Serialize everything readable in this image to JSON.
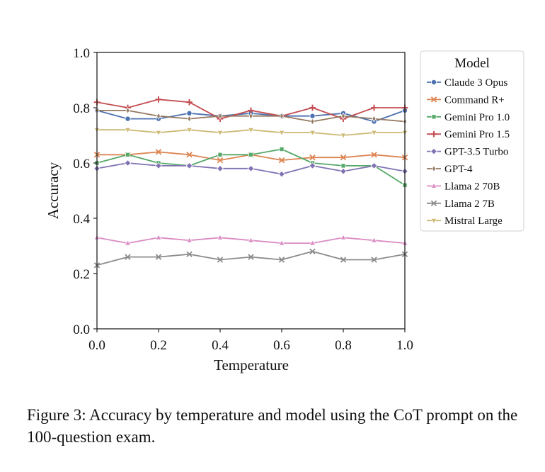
{
  "caption": "Figure 3: Accuracy by temperature and model using the CoT prompt on the 100-question exam.",
  "chart_data": {
    "type": "line",
    "title": "",
    "xlabel": "Temperature",
    "ylabel": "Accuracy",
    "xlim": [
      0.0,
      1.0
    ],
    "ylim": [
      0.0,
      1.0
    ],
    "xticks": [
      "0.0",
      "0.2",
      "0.4",
      "0.6",
      "0.8",
      "1.0"
    ],
    "yticks": [
      "0.0",
      "0.2",
      "0.4",
      "0.6",
      "0.8",
      "1.0"
    ],
    "grid": false,
    "legend": {
      "title": "Model",
      "placement": "outside-right"
    },
    "x": [
      0.0,
      0.1,
      0.2,
      0.3,
      0.4,
      0.5,
      0.6,
      0.7,
      0.8,
      0.9,
      1.0
    ],
    "series": [
      {
        "name": "Claude 3 Opus",
        "color": "#4c72b0",
        "marker": "circle",
        "values": [
          0.79,
          0.76,
          0.76,
          0.78,
          0.77,
          0.78,
          0.77,
          0.77,
          0.78,
          0.75,
          0.79
        ]
      },
      {
        "name": "Command R+",
        "color": "#dd8452",
        "marker": "x",
        "values": [
          0.63,
          0.63,
          0.64,
          0.63,
          0.61,
          0.63,
          0.61,
          0.62,
          0.62,
          0.63,
          0.62
        ]
      },
      {
        "name": "Gemini Pro 1.0",
        "color": "#55a868",
        "marker": "square",
        "values": [
          0.6,
          0.63,
          0.6,
          0.59,
          0.63,
          0.63,
          0.65,
          0.6,
          0.59,
          0.59,
          0.52
        ]
      },
      {
        "name": "Gemini Pro 1.5",
        "color": "#c44e52",
        "marker": "plus",
        "values": [
          0.82,
          0.8,
          0.83,
          0.82,
          0.76,
          0.79,
          0.77,
          0.8,
          0.76,
          0.8,
          0.8
        ]
      },
      {
        "name": "GPT-3.5 Turbo",
        "color": "#8172b3",
        "marker": "diamond",
        "values": [
          0.58,
          0.6,
          0.59,
          0.59,
          0.58,
          0.58,
          0.56,
          0.59,
          0.57,
          0.59,
          0.57
        ]
      },
      {
        "name": "GPT-4",
        "color": "#937860",
        "marker": "thin-diamond",
        "values": [
          0.79,
          0.79,
          0.77,
          0.76,
          0.77,
          0.77,
          0.77,
          0.75,
          0.77,
          0.76,
          0.75
        ]
      },
      {
        "name": "Llama 2 70B",
        "color": "#da8bc3",
        "marker": "triangle-up",
        "values": [
          0.33,
          0.31,
          0.33,
          0.32,
          0.33,
          0.32,
          0.31,
          0.31,
          0.33,
          0.32,
          0.31
        ]
      },
      {
        "name": "Llama 2 7B",
        "color": "#8c8c8c",
        "marker": "x",
        "values": [
          0.23,
          0.26,
          0.26,
          0.27,
          0.25,
          0.26,
          0.25,
          0.28,
          0.25,
          0.25,
          0.27
        ]
      },
      {
        "name": "Mistral Large",
        "color": "#ccb974",
        "marker": "triangle-down",
        "values": [
          0.72,
          0.72,
          0.71,
          0.72,
          0.71,
          0.72,
          0.71,
          0.71,
          0.7,
          0.71,
          0.71
        ]
      }
    ]
  }
}
